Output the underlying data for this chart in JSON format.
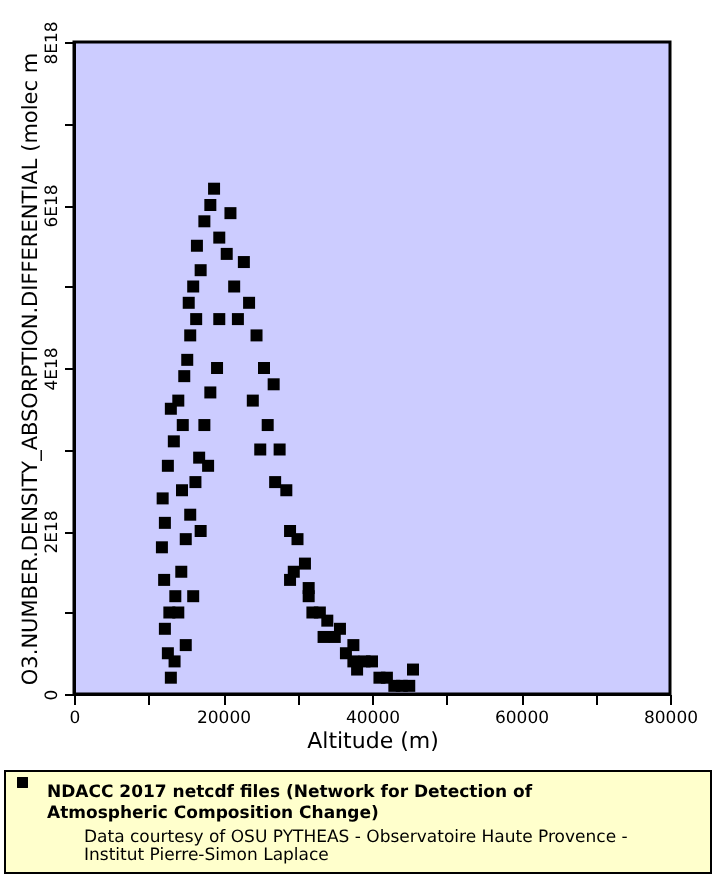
{
  "chart_data": {
    "type": "scatter",
    "xlabel": "Altitude (m)",
    "ylabel": "O3.NUMBER.DENSITY_ABSORPTION.DIFFERENTIAL (molec m",
    "xlim": [
      0,
      80000
    ],
    "ylim": [
      0,
      8e+18
    ],
    "xticks": [
      0,
      {
        "value": 10000,
        "label": null
      },
      20000,
      {
        "value": 30000,
        "label": null
      },
      40000,
      {
        "value": 50000,
        "label": null
      },
      60000,
      {
        "value": 70000,
        "label": null
      },
      80000
    ],
    "yticks": [
      {
        "value": 0,
        "label": "0"
      },
      {
        "value": 1e+18,
        "label": null
      },
      {
        "value": 2e+18,
        "label": "2E18"
      },
      {
        "value": 3e+18,
        "label": null
      },
      {
        "value": 4e+18,
        "label": "4E18"
      },
      {
        "value": 5e+18,
        "label": null
      },
      {
        "value": 6e+18,
        "label": "6E18"
      },
      {
        "value": 7e+18,
        "label": null
      },
      {
        "value": 8e+18,
        "label": "8E18"
      }
    ],
    "grid": false,
    "legend": "bottom",
    "marker": "square",
    "annotations": [
      "Data courtesy of OSU PYTHEAS - Observatoire Haute Provence - Institut Pierre-Simon Laplace"
    ],
    "series": [
      {
        "name": "NDACC 2017 netcdf files (Network for Detection of Atmospheric Composition Change)",
        "color": "#000000",
        "x": [
          13000,
          12600,
          12200,
          12800,
          13600,
          12100,
          14400,
          11800,
          15000,
          12200,
          15600,
          11900,
          16300,
          12600,
          16800,
          13400,
          14600,
          17500,
          14000,
          18300,
          14800,
          19200,
          15200,
          15600,
          16400,
          15400,
          16000,
          17000,
          16500,
          17500,
          18800,
          18300,
          19500,
          21000,
          20500,
          22800,
          23500,
          22000,
          19500,
          21500,
          24500,
          25500,
          24000,
          26800,
          26000,
          27600,
          25000,
          27000,
          28500,
          29000,
          30000,
          31000,
          29500,
          31500,
          32000,
          33000,
          34000,
          33500,
          35000,
          35700,
          36500,
          37500,
          38000,
          39000,
          40000,
          41000,
          42000,
          43000,
          44000,
          45000,
          45500,
          15000,
          14000,
          13500,
          16000,
          17000,
          18000,
          14500,
          13000,
          29000,
          31500,
          37500
        ],
        "values": [
          2e+17,
          5e+17,
          8e+17,
          1e+18,
          1.2e+18,
          1.4e+18,
          1.5e+18,
          1.8e+18,
          1.9e+18,
          2.1e+18,
          2.2e+18,
          2.4e+18,
          2.6e+18,
          2.8e+18,
          2.9e+18,
          3.1e+18,
          3.3e+18,
          3.3e+18,
          3.6e+18,
          3.7e+18,
          3.9e+18,
          4e+18,
          4.1e+18,
          4.4e+18,
          4.6e+18,
          4.8e+18,
          5e+18,
          5.2e+18,
          5.5e+18,
          5.8e+18,
          6.2e+18,
          6e+18,
          5.6e+18,
          5.9e+18,
          5.4e+18,
          5.3e+18,
          4.8e+18,
          4.6e+18,
          4.6e+18,
          5e+18,
          4.4e+18,
          4e+18,
          3.6e+18,
          3.8e+18,
          3.3e+18,
          3e+18,
          3e+18,
          2.6e+18,
          2.5e+18,
          2e+18,
          1.9e+18,
          1.6e+18,
          1.5e+18,
          1.3e+18,
          1e+18,
          1e+18,
          9e+17,
          7e+17,
          7e+17,
          8e+17,
          5e+17,
          6e+17,
          3e+17,
          4e+17,
          4e+17,
          2e+17,
          2e+17,
          1e+17,
          1e+17,
          1e+17,
          3e+17,
          6e+17,
          1e+18,
          4e+17,
          1.2e+18,
          2e+18,
          2.8e+18,
          2.5e+18,
          3.5e+18,
          1.4e+18,
          1.2e+18,
          4e+17
        ]
      }
    ]
  }
}
